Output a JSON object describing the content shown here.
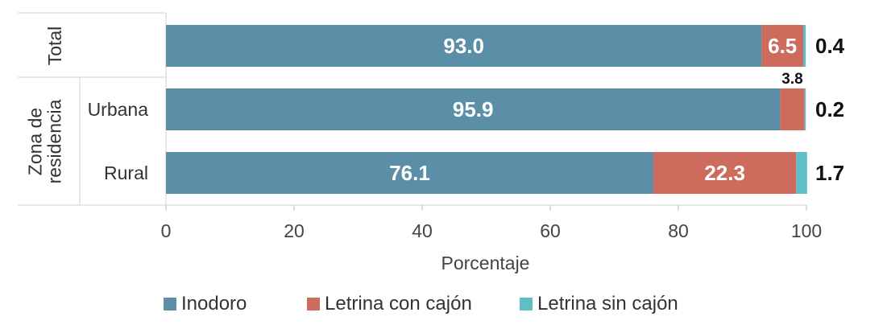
{
  "chart_data": {
    "type": "bar",
    "orientation": "horizontal",
    "stacked": true,
    "xlabel": "Porcentaje",
    "xlim": [
      0,
      100
    ],
    "xticks": [
      0,
      20,
      40,
      60,
      80,
      100
    ],
    "groups": [
      {
        "label": "Total",
        "categories": [
          "Total"
        ]
      },
      {
        "label": "Zona de residencia",
        "categories": [
          "Urbana",
          "Rural"
        ]
      }
    ],
    "categories": [
      "Total",
      "Urbana",
      "Rural"
    ],
    "category_labels": [
      "",
      "Urbana",
      "Rural"
    ],
    "series": [
      {
        "name": "Inodoro",
        "values": [
          93.0,
          95.9,
          76.1
        ]
      },
      {
        "name": "Letrina con cajón",
        "values": [
          6.5,
          3.8,
          22.3
        ]
      },
      {
        "name": "Letrina sin cajón",
        "values": [
          0.4,
          0.2,
          1.7
        ]
      }
    ],
    "colors": [
      "#5b8fa8",
      "#cd6b5c",
      "#5fbec6"
    ],
    "legend_position": "bottom"
  }
}
